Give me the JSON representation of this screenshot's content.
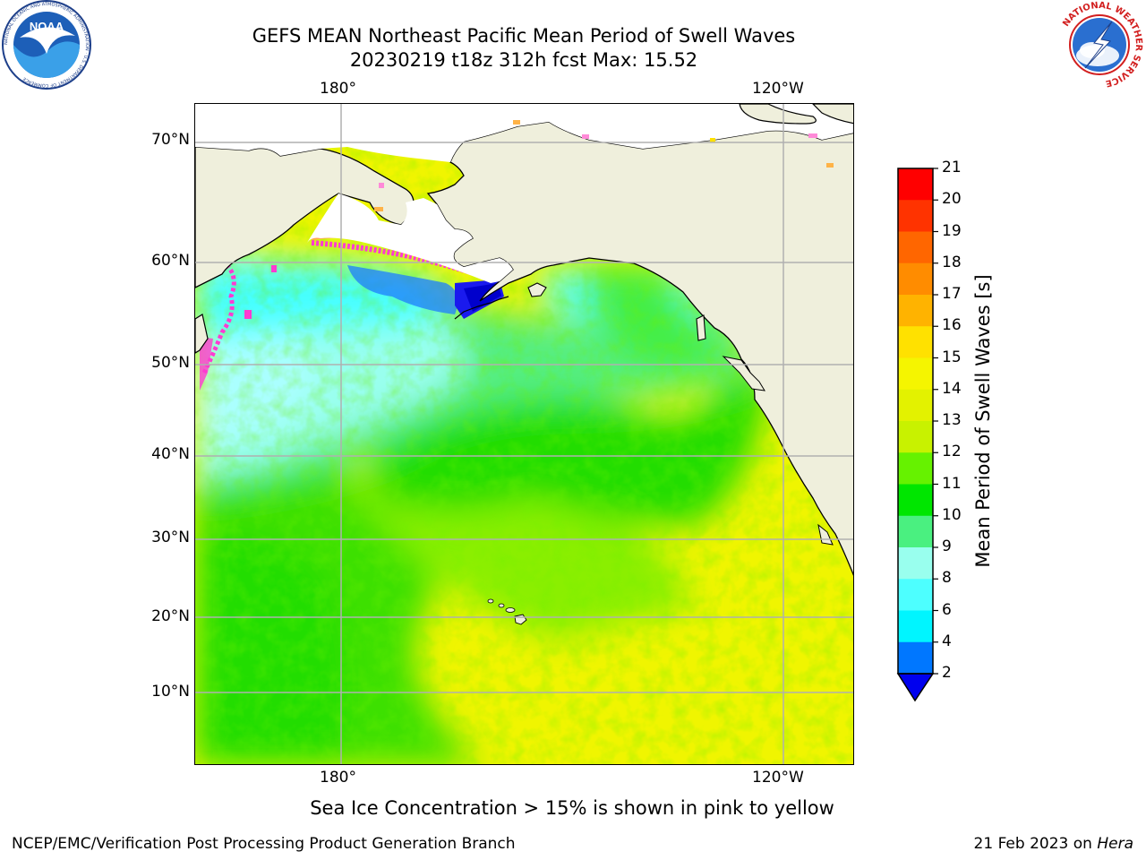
{
  "header": {
    "title_line1": "GEFS MEAN Northeast Pacific Mean Period of Swell Waves",
    "title_line2": "20230219 t18z 312h fcst   Max: 15.52"
  },
  "logos": {
    "left": {
      "name": "noaa-logo",
      "text": "NOAA",
      "ring_text": "NATIONAL OCEANIC AND ATMOSPHERIC ADMINISTRATION · U.S. DEPARTMENT OF COMMERCE"
    },
    "right": {
      "name": "nws-logo",
      "ring_text": "NATIONAL WEATHER SERVICE"
    }
  },
  "map": {
    "lon_labels_top": [
      "180°",
      "120°W"
    ],
    "lon_labels_bottom": [
      "180°",
      "120°W"
    ],
    "lat_labels": [
      "70°N",
      "60°N",
      "50°N",
      "40°N",
      "30°N",
      "20°N",
      "10°N"
    ],
    "colors": {
      "land": "#efefdc",
      "ice_white": "#ffffff",
      "grid": "#b0b0b0",
      "coast": "#000000"
    }
  },
  "colorbar": {
    "title": "Mean Period of Swell Waves [s]",
    "ticks": [
      "21",
      "20",
      "19",
      "18",
      "17",
      "16",
      "15",
      "14",
      "13",
      "12",
      "11",
      "10",
      "9",
      "8",
      "6",
      "4",
      "2"
    ],
    "colors_top_to_bottom": [
      "#ff0000",
      "#ff3300",
      "#ff6600",
      "#ff8c00",
      "#ffb300",
      "#ffe100",
      "#f5f500",
      "#e3f200",
      "#c8f200",
      "#66f200",
      "#00e600",
      "#4af080",
      "#99ffee",
      "#4dffff",
      "#00f5ff",
      "#0077ff",
      "#0000ee"
    ]
  },
  "footer": {
    "ice_note": "Sea Ice Concentration > 15% is shown in pink to yellow",
    "left": "NCEP/EMC/Verification Post Processing Product Generation Branch",
    "right_prefix": "21 Feb 2023 on ",
    "right_machine": "Hera"
  }
}
